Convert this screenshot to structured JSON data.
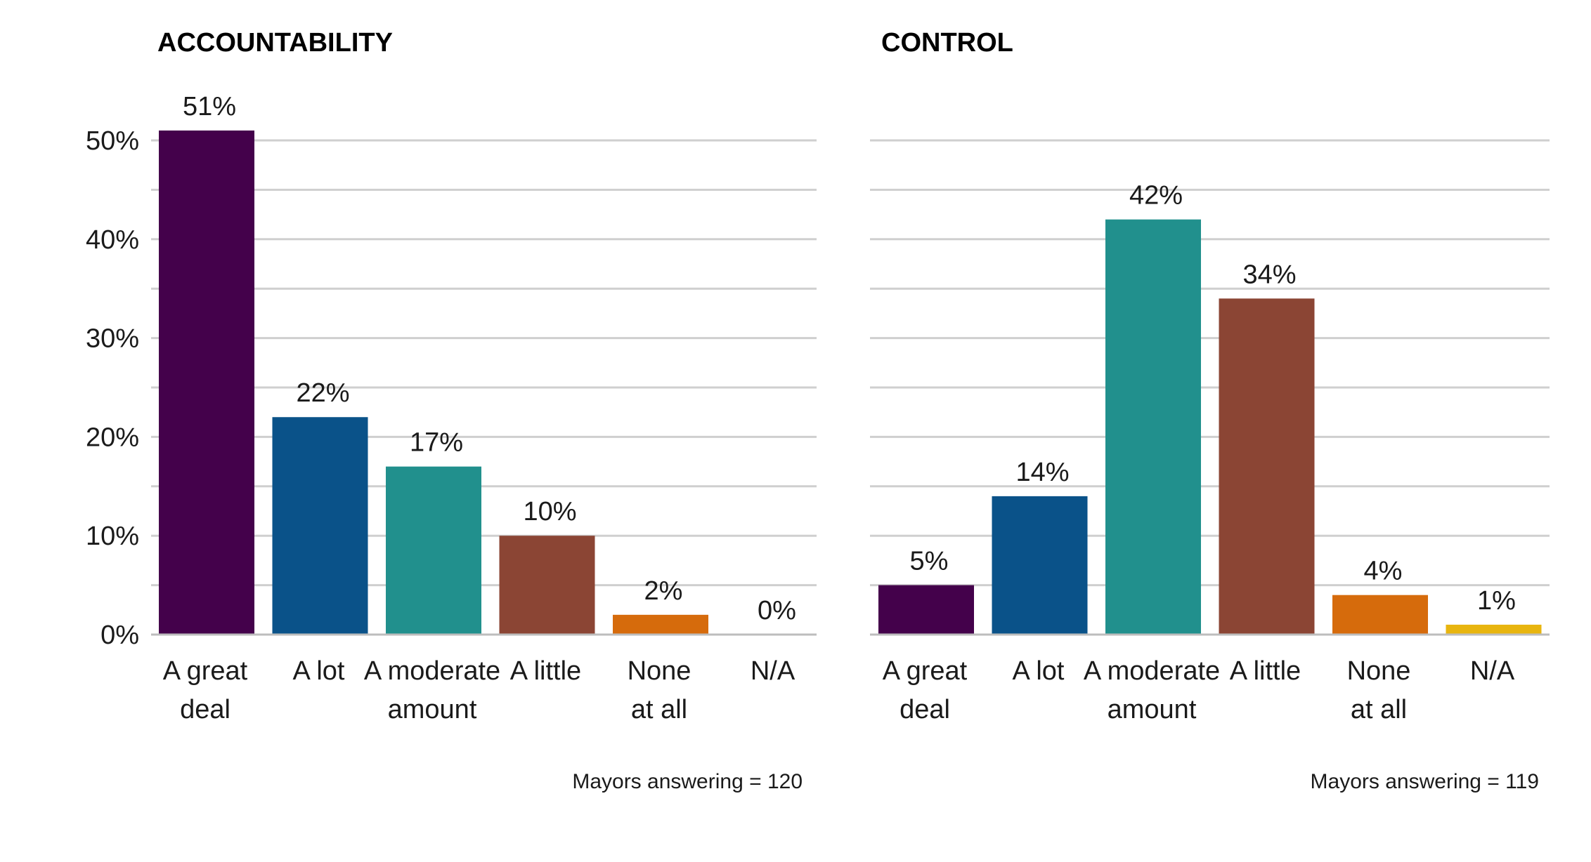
{
  "chart_data": [
    {
      "type": "bar",
      "title": "ACCOUNTABILITY",
      "categories": [
        [
          "A great",
          "deal"
        ],
        [
          "A lot"
        ],
        [
          "A moderate",
          "amount"
        ],
        [
          "A little"
        ],
        [
          "None",
          "at all"
        ],
        [
          "N/A"
        ]
      ],
      "values": [
        51,
        22,
        17,
        10,
        2,
        0
      ],
      "value_labels": [
        "51%",
        "22%",
        "17%",
        "10%",
        "2%",
        "0%"
      ],
      "colors": [
        "#44014b",
        "#0a5289",
        "#21908d",
        "#8b4534",
        "#d66b0c",
        "#e8b50f"
      ],
      "ylim": [
        0,
        50
      ],
      "yticks": [
        0,
        10,
        20,
        30,
        40,
        50
      ],
      "ytick_labels": [
        "0%",
        "10%",
        "20%",
        "30%",
        "40%",
        "50%"
      ],
      "gridlines_every": 5,
      "xlabel": "",
      "ylabel": "",
      "footnote": "Mayors answering = 120"
    },
    {
      "type": "bar",
      "title": "CONTROL",
      "categories": [
        [
          "A great",
          "deal"
        ],
        [
          "A lot"
        ],
        [
          "A moderate",
          "amount"
        ],
        [
          "A little"
        ],
        [
          "None",
          "at all"
        ],
        [
          "N/A"
        ]
      ],
      "values": [
        5,
        14,
        42,
        34,
        4,
        1
      ],
      "value_labels": [
        "5%",
        "14%",
        "42%",
        "34%",
        "4%",
        "1%"
      ],
      "colors": [
        "#44014b",
        "#0a5289",
        "#21908d",
        "#8b4534",
        "#d66b0c",
        "#e8b50f"
      ],
      "ylim": [
        0,
        50
      ],
      "yticks": [
        0,
        10,
        20,
        30,
        40,
        50
      ],
      "ytick_labels": [],
      "gridlines_every": 5,
      "xlabel": "",
      "ylabel": "",
      "footnote": "Mayors answering = 119"
    }
  ]
}
